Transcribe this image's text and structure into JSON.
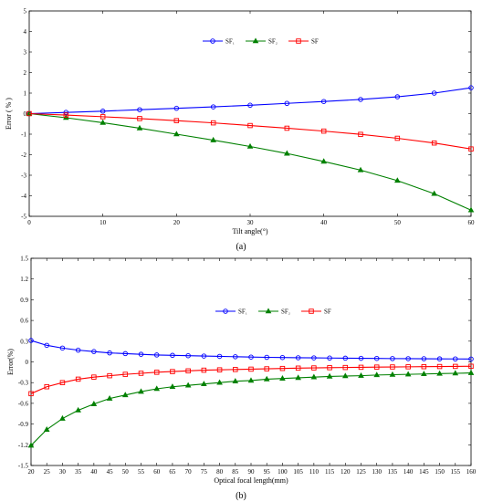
{
  "chart_data": [
    {
      "type": "line",
      "panel_label": "(a)",
      "xlabel": "Tilt angle(°)",
      "ylabel": "Error ( % )",
      "xlim": [
        0,
        60
      ],
      "ylim": [
        -5,
        5
      ],
      "xticks": [
        0,
        10,
        20,
        30,
        40,
        50,
        60
      ],
      "yticks": [
        -5,
        -4,
        -3,
        -2,
        -1,
        0,
        1,
        2,
        3,
        4,
        5
      ],
      "grid": false,
      "legend_position": "top-center",
      "x": [
        0,
        5,
        10,
        15,
        20,
        25,
        30,
        35,
        40,
        45,
        50,
        55,
        60
      ],
      "series": [
        {
          "name": "SF₁",
          "color": "#0000ff",
          "marker": "circle",
          "values": [
            0,
            0.06,
            0.12,
            0.19,
            0.26,
            0.33,
            0.41,
            0.5,
            0.59,
            0.69,
            0.82,
            1.0,
            1.26
          ]
        },
        {
          "name": "SF₂",
          "color": "#008000",
          "marker": "triangle",
          "values": [
            0,
            -0.2,
            -0.44,
            -0.71,
            -1.0,
            -1.29,
            -1.6,
            -1.94,
            -2.33,
            -2.75,
            -3.26,
            -3.9,
            -4.7
          ]
        },
        {
          "name": "SF",
          "color": "#ff0000",
          "marker": "square",
          "values": [
            0,
            -0.07,
            -0.15,
            -0.24,
            -0.34,
            -0.45,
            -0.58,
            -0.71,
            -0.85,
            -1.01,
            -1.2,
            -1.43,
            -1.72
          ]
        }
      ]
    },
    {
      "type": "line",
      "panel_label": "(b)",
      "xlabel": "Optical focal length(mm)",
      "ylabel": "Error(%)",
      "xlim": [
        20,
        160
      ],
      "ylim": [
        -1.5,
        1.5
      ],
      "xticks": [
        20,
        25,
        30,
        35,
        40,
        45,
        50,
        55,
        60,
        65,
        70,
        75,
        80,
        85,
        90,
        95,
        100,
        105,
        110,
        115,
        120,
        125,
        130,
        135,
        140,
        145,
        150,
        155,
        160
      ],
      "yticks": [
        -1.5,
        -1.2,
        -0.9,
        -0.6,
        -0.3,
        0,
        0.3,
        0.6,
        0.9,
        1.2,
        1.5
      ],
      "grid": false,
      "legend_position": "top-right",
      "x": [
        20,
        25,
        30,
        35,
        40,
        45,
        50,
        55,
        60,
        65,
        70,
        75,
        80,
        85,
        90,
        95,
        100,
        105,
        110,
        115,
        120,
        125,
        130,
        135,
        140,
        145,
        150,
        155,
        160
      ],
      "series": [
        {
          "name": "SF₁",
          "color": "#0000ff",
          "marker": "circle",
          "values": [
            0.31,
            0.24,
            0.2,
            0.17,
            0.15,
            0.13,
            0.12,
            0.11,
            0.1,
            0.095,
            0.09,
            0.085,
            0.08,
            0.075,
            0.07,
            0.066,
            0.063,
            0.06,
            0.058,
            0.056,
            0.054,
            0.052,
            0.05,
            0.048,
            0.047,
            0.046,
            0.044,
            0.043,
            0.042
          ]
        },
        {
          "name": "SF₂",
          "color": "#008000",
          "marker": "triangle",
          "values": [
            -1.21,
            -0.98,
            -0.82,
            -0.7,
            -0.61,
            -0.53,
            -0.48,
            -0.43,
            -0.39,
            -0.36,
            -0.34,
            -0.32,
            -0.3,
            -0.28,
            -0.27,
            -0.25,
            -0.24,
            -0.23,
            -0.22,
            -0.21,
            -0.205,
            -0.2,
            -0.19,
            -0.185,
            -0.18,
            -0.175,
            -0.17,
            -0.165,
            -0.16
          ]
        },
        {
          "name": "SF",
          "color": "#ff0000",
          "marker": "square",
          "values": [
            -0.46,
            -0.36,
            -0.3,
            -0.25,
            -0.22,
            -0.2,
            -0.18,
            -0.165,
            -0.15,
            -0.14,
            -0.13,
            -0.12,
            -0.115,
            -0.11,
            -0.105,
            -0.1,
            -0.095,
            -0.09,
            -0.087,
            -0.084,
            -0.081,
            -0.078,
            -0.075,
            -0.073,
            -0.071,
            -0.069,
            -0.067,
            -0.065,
            -0.063
          ]
        }
      ]
    }
  ]
}
